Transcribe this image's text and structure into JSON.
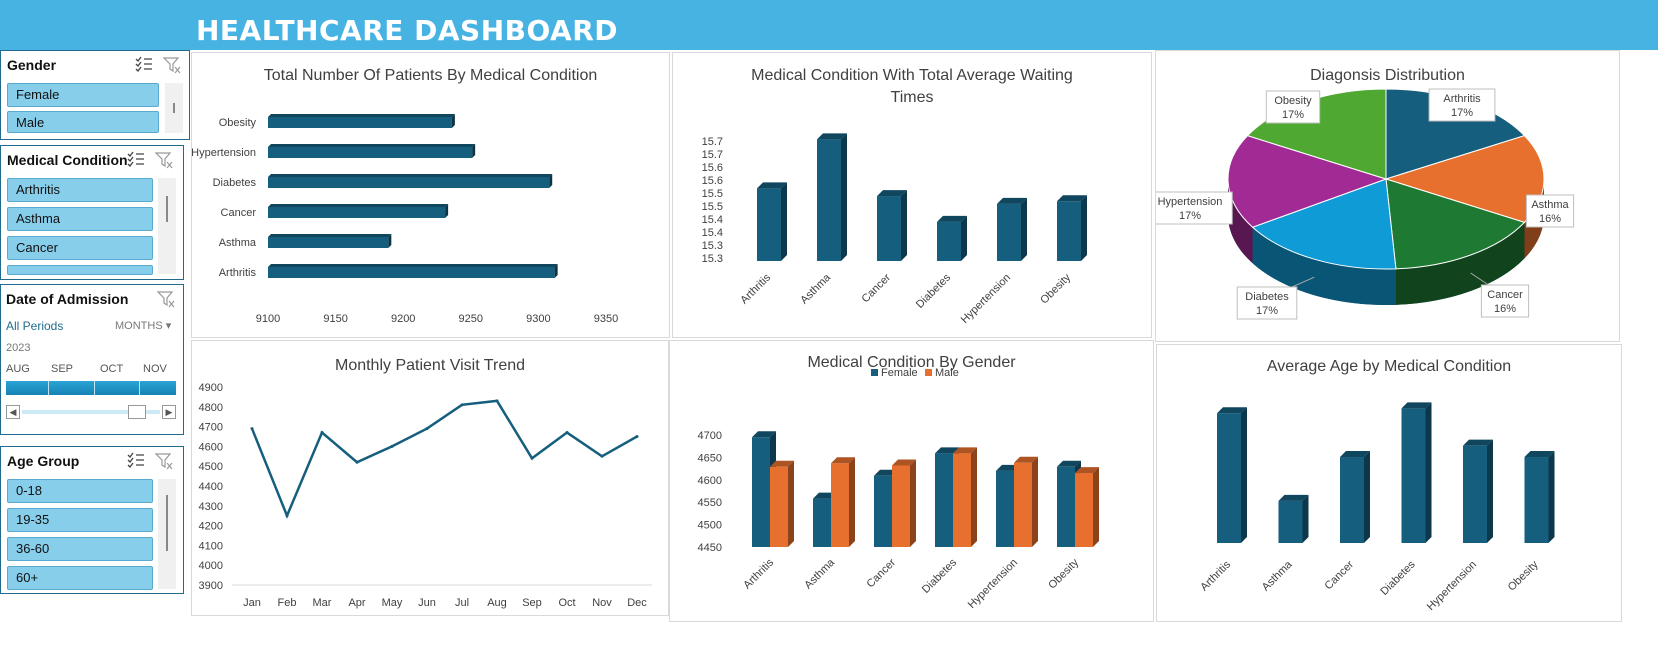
{
  "header": {
    "title": "HEALTHCARE DASHBOARD"
  },
  "colors": {
    "primary": "#155e7d",
    "accent": "#e8702e",
    "header": "#46b3e3",
    "slicer_item": "#87ceeb"
  },
  "slicers": {
    "gender": {
      "title": "Gender",
      "items": [
        "Female",
        "Male"
      ]
    },
    "condition": {
      "title": "Medical Condition",
      "items": [
        "Arthritis",
        "Asthma",
        "Cancer"
      ]
    },
    "date": {
      "title": "Date of Admission",
      "period": "All Periods",
      "unit": "MONTHS",
      "year": "2023",
      "months": [
        "AUG",
        "SEP",
        "OCT",
        "NOV"
      ]
    },
    "age": {
      "title": "Age Group",
      "items": [
        "0-18",
        "19-35",
        "36-60",
        "60+"
      ]
    }
  },
  "chart_data": [
    {
      "id": "patients",
      "type": "bar",
      "orientation": "horizontal",
      "title": "Total Number Of Patients By Medical Condition",
      "categories": [
        "Obesity",
        "Hypertension",
        "Diabetes",
        "Cancer",
        "Asthma",
        "Arthritis"
      ],
      "values": [
        9236,
        9251,
        9308,
        9231,
        9189,
        9312
      ],
      "xlim": [
        9100,
        9350
      ],
      "xticks": [
        "9100",
        "9150",
        "9200",
        "9250",
        "9300",
        "9350"
      ]
    },
    {
      "id": "waiting",
      "type": "bar",
      "title": "Medical Condition With Total Average Waiting Times",
      "categories": [
        "Arthritis",
        "Asthma",
        "Cancer",
        "Diabetes",
        "Hypertension",
        "Obesity"
      ],
      "values": [
        15.57,
        15.76,
        15.54,
        15.44,
        15.51,
        15.52
      ],
      "ylim": [
        15.3,
        15.8
      ],
      "yticks": [
        "15.7",
        "15.7",
        "15.6",
        "15.6",
        "15.5",
        "15.5",
        "15.4",
        "15.4",
        "15.3",
        "15.3"
      ]
    },
    {
      "id": "diagnosis",
      "type": "pie",
      "title": "Diagonsis Distribution",
      "slices": [
        {
          "label": "Arthritis",
          "pct": "17%",
          "value": 17,
          "color": "#155e7d"
        },
        {
          "label": "Asthma",
          "pct": "16%",
          "value": 16,
          "color": "#e8702e"
        },
        {
          "label": "Cancer",
          "pct": "16%",
          "value": 16,
          "color": "#1e7a32"
        },
        {
          "label": "Diabetes",
          "pct": "17%",
          "value": 17,
          "color": "#0e9bd6"
        },
        {
          "label": "Hypertension",
          "pct": "17%",
          "value": 17,
          "color": "#a22a95"
        },
        {
          "label": "Obesity",
          "pct": "17%",
          "value": 17,
          "color": "#4fa831"
        }
      ]
    },
    {
      "id": "trend",
      "type": "line",
      "title": "Monthly Patient Visit Trend",
      "categories": [
        "Jan",
        "Feb",
        "Mar",
        "Apr",
        "May",
        "Jun",
        "Jul",
        "Aug",
        "Sep",
        "Oct",
        "Nov",
        "Dec"
      ],
      "values": [
        4690,
        4250,
        4670,
        4520,
        4600,
        4690,
        4810,
        4830,
        4540,
        4670,
        4550,
        4650
      ],
      "ylim": [
        3900,
        4900
      ],
      "yticks": [
        "4900",
        "4800",
        "4700",
        "4600",
        "4500",
        "4400",
        "4300",
        "4200",
        "4100",
        "4000",
        "3900"
      ]
    },
    {
      "id": "gender",
      "type": "bar",
      "title": "Medical Condition By Gender",
      "categories": [
        "Arthritis",
        "Asthma",
        "Cancer",
        "Diabetes",
        "Hypertension",
        "Obesity"
      ],
      "series": [
        {
          "name": "Female",
          "values": [
            4695,
            4558,
            4609,
            4659,
            4620,
            4629
          ]
        },
        {
          "name": "Male",
          "values": [
            4629,
            4637,
            4632,
            4659,
            4638,
            4615
          ]
        }
      ],
      "ylim": [
        4450,
        4700
      ],
      "yticks": [
        "4700",
        "4650",
        "4600",
        "4550",
        "4500",
        "4450"
      ],
      "legend": "top"
    },
    {
      "id": "age",
      "type": "bar",
      "title": "Average Age by Medical Condition",
      "categories": [
        "Arthritis",
        "Asthma",
        "Cancer",
        "Diabetes",
        "Hypertension",
        "Obesity"
      ],
      "values": [
        51.7,
        51.16,
        51.43,
        51.73,
        51.5,
        51.43
      ],
      "ylim": [
        50.9,
        51.8
      ]
    }
  ]
}
